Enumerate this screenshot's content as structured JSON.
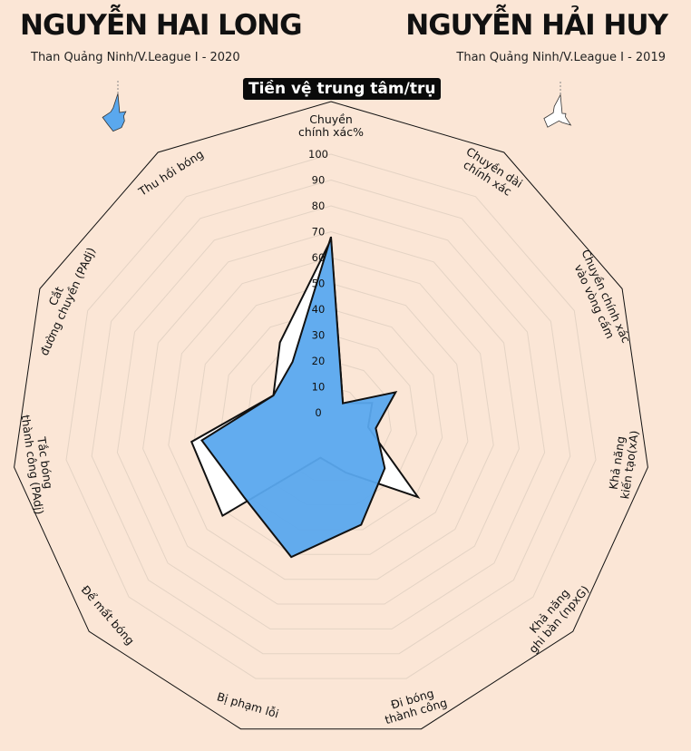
{
  "header": {
    "left": {
      "name": "NGUYỄN HAI LONG",
      "club": "Than Quảng Ninh/V.League I - 2020"
    },
    "right": {
      "name": "NGUYỄN HẢI HUY",
      "club": "Than Quảng Ninh/V.League I - 2019"
    },
    "role": "Tiền vệ trung tâm/trụ"
  },
  "colors": {
    "background": "#fbe6d6",
    "series_left": "#5aa8ee",
    "series_right": "#ffffff",
    "grid": "#e4d3c4",
    "outline": "#111111"
  },
  "chart_data": {
    "type": "radar",
    "axes": [
      [
        "Chuyền",
        "chính xác%"
      ],
      [
        "Chuyền dài",
        "chính xác"
      ],
      [
        "Chuyền chính xác",
        "vào vòng cấm"
      ],
      [
        "Khả năng",
        "kiến tạo(xA)"
      ],
      [
        "Khả năng",
        "ghi bàn (npxG)"
      ],
      [
        "Đi bóng",
        "thành công"
      ],
      [
        "Bị phạm lỗi"
      ],
      [
        "Để mất bóng"
      ],
      [
        "Tắc bóng",
        "thành công (PAdj)"
      ],
      [
        "Cắt",
        "đường chuyền (PAdj)"
      ],
      [
        "Thu hồi bóng"
      ]
    ],
    "ticks": [
      "0",
      "10",
      "20",
      "30",
      "40",
      "50",
      "60",
      "70",
      "80",
      "90",
      "100"
    ],
    "range": [
      0,
      100
    ],
    "series": [
      {
        "values": [
          68,
          5,
          24,
          14,
          24,
          38,
          51,
          41,
          47,
          21,
          24
        ]
      },
      {
        "values": [
          67,
          5,
          14,
          11,
          41,
          17,
          11,
          52,
          51,
          21,
          33
        ]
      }
    ]
  }
}
